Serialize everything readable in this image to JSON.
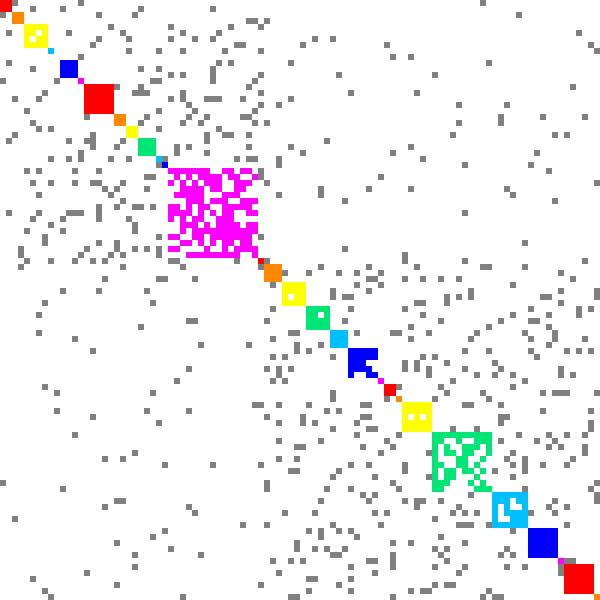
{
  "matrix": {
    "background": "#ffffff",
    "offdiag_color": "#808080",
    "grid_size": 100,
    "palette": [
      "#ff0000",
      "#ff8800",
      "#ffff00",
      "#00e676",
      "#00bfff",
      "#0000ff",
      "#ff00ff"
    ],
    "communities": [
      {
        "color": "#ff0000",
        "range": [
          0,
          2
        ],
        "pattern": "block"
      },
      {
        "color": "#ff8800",
        "range": [
          2,
          4
        ],
        "pattern": "block"
      },
      {
        "color": "#ffff00",
        "range": [
          4,
          8
        ],
        "pattern": "ring"
      },
      {
        "color": "#00bfff",
        "range": [
          8,
          9
        ],
        "pattern": "block"
      },
      {
        "color": "#0000ff",
        "range": [
          10,
          13
        ],
        "pattern": "block"
      },
      {
        "color": "#ff00ff",
        "range": [
          13,
          14
        ],
        "pattern": "block"
      },
      {
        "color": "#ff0000",
        "range": [
          14,
          19
        ],
        "pattern": "block"
      },
      {
        "color": "#ff8800",
        "range": [
          19,
          21
        ],
        "pattern": "block"
      },
      {
        "color": "#ffff00",
        "range": [
          21,
          23
        ],
        "pattern": "block"
      },
      {
        "color": "#00e676",
        "range": [
          23,
          26
        ],
        "pattern": "ring"
      },
      {
        "color": "#00bfff",
        "range": [
          26,
          27
        ],
        "pattern": "block"
      },
      {
        "color": "#0000ff",
        "range": [
          27,
          28
        ],
        "pattern": "block"
      },
      {
        "color": "#ff00ff",
        "range": [
          28,
          43
        ],
        "pattern": "dense"
      },
      {
        "color": "#ff0000",
        "range": [
          43,
          44
        ],
        "pattern": "block"
      },
      {
        "color": "#ff8800",
        "range": [
          44,
          47
        ],
        "pattern": "block"
      },
      {
        "color": "#ffff00",
        "range": [
          47,
          51
        ],
        "pattern": "ring"
      },
      {
        "color": "#00e676",
        "range": [
          51,
          55
        ],
        "pattern": "ring"
      },
      {
        "color": "#00bfff",
        "range": [
          55,
          58
        ],
        "pattern": "ring"
      },
      {
        "color": "#0000ff",
        "range": [
          58,
          63
        ],
        "pattern": "cross"
      },
      {
        "color": "#ff00ff",
        "range": [
          63,
          64
        ],
        "pattern": "block"
      },
      {
        "color": "#ff0000",
        "range": [
          64,
          66
        ],
        "pattern": "block"
      },
      {
        "color": "#ff8800",
        "range": [
          66,
          67
        ],
        "pattern": "block"
      },
      {
        "color": "#ffff00",
        "range": [
          67,
          72
        ],
        "pattern": "ring"
      },
      {
        "color": "#00e676",
        "range": [
          72,
          82
        ],
        "pattern": "cross"
      },
      {
        "color": "#00bfff",
        "range": [
          82,
          88
        ],
        "pattern": "ring"
      },
      {
        "color": "#0000ff",
        "range": [
          88,
          93
        ],
        "pattern": "block"
      },
      {
        "color": "#ff00ff",
        "range": [
          93,
          94
        ],
        "pattern": "block"
      },
      {
        "color": "#ff0000",
        "range": [
          94,
          99
        ],
        "pattern": "block"
      },
      {
        "color": "#ff8800",
        "range": [
          99,
          100
        ],
        "pattern": "block"
      }
    ]
  }
}
